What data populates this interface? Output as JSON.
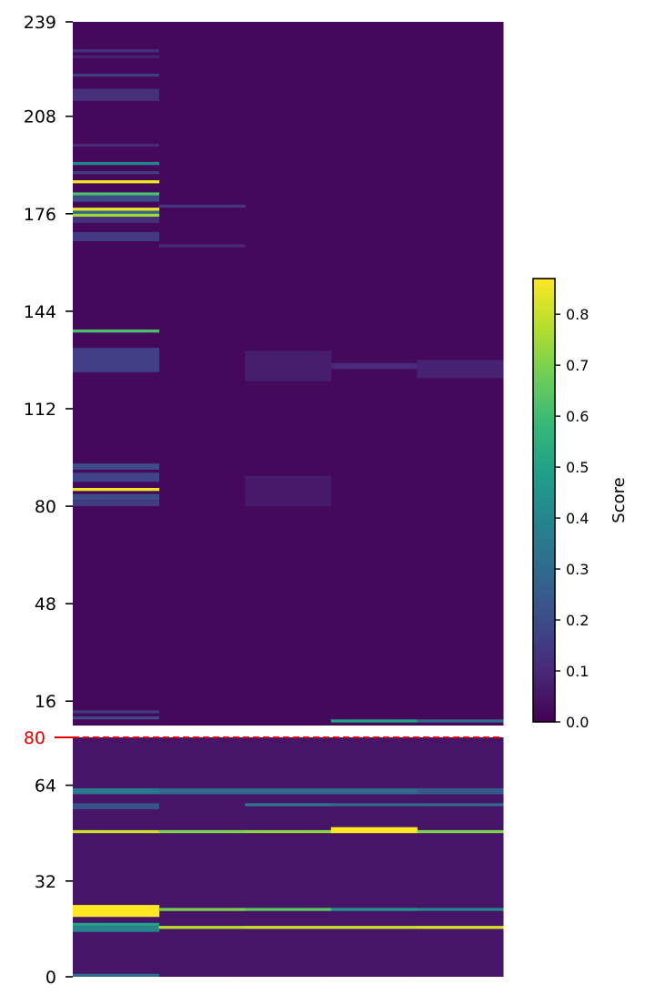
{
  "chart_data": {
    "type": "heatmap",
    "title": "",
    "xlabel": "",
    "ylabel": "",
    "columns": 5,
    "colormap": "viridis",
    "upper_block": {
      "y_tick_labels": [
        "239",
        "208",
        "176",
        "144",
        "112",
        "80",
        "48",
        "16"
      ],
      "y_ticks": [
        239,
        208,
        176,
        144,
        112,
        80,
        48,
        16
      ],
      "y_range": [
        239,
        8
      ],
      "background": 0.02,
      "bands": [
        {
          "col": 0,
          "y0": 230,
          "y1": 229,
          "v": 0.12
        },
        {
          "col": 0,
          "y0": 228,
          "y1": 227,
          "v": 0.08
        },
        {
          "col": 0,
          "y0": 222,
          "y1": 221,
          "v": 0.15
        },
        {
          "col": 0,
          "y0": 217,
          "y1": 213,
          "v": 0.12
        },
        {
          "col": 0,
          "y0": 199,
          "y1": 198,
          "v": 0.1
        },
        {
          "col": 0,
          "y0": 193,
          "y1": 192,
          "v": 0.4
        },
        {
          "col": 0,
          "y0": 190,
          "y1": 189,
          "v": 0.15
        },
        {
          "col": 0,
          "y0": 187,
          "y1": 186,
          "v": 0.85
        },
        {
          "col": 0,
          "y0": 183,
          "y1": 182,
          "v": 0.62
        },
        {
          "col": 0,
          "y0": 182,
          "y1": 180,
          "v": 0.2
        },
        {
          "col": 0,
          "y0": 178,
          "y1": 177,
          "v": 0.85
        },
        {
          "col": 0,
          "y0": 177,
          "y1": 176,
          "v": 0.3
        },
        {
          "col": 0,
          "y0": 176,
          "y1": 175,
          "v": 0.75
        },
        {
          "col": 0,
          "y0": 175,
          "y1": 173,
          "v": 0.12
        },
        {
          "col": 0,
          "y0": 170,
          "y1": 167,
          "v": 0.15
        },
        {
          "col": 0,
          "y0": 138,
          "y1": 137,
          "v": 0.62
        },
        {
          "col": 0,
          "y0": 132,
          "y1": 124,
          "v": 0.16
        },
        {
          "col": 0,
          "y0": 94,
          "y1": 92,
          "v": 0.2
        },
        {
          "col": 0,
          "y0": 91,
          "y1": 88,
          "v": 0.18
        },
        {
          "col": 0,
          "y0": 86,
          "y1": 85,
          "v": 0.85
        },
        {
          "col": 0,
          "y0": 84,
          "y1": 82,
          "v": 0.2
        },
        {
          "col": 0,
          "y0": 82,
          "y1": 80,
          "v": 0.15
        },
        {
          "col": 1,
          "y0": 179,
          "y1": 178,
          "v": 0.14
        },
        {
          "col": 1,
          "y0": 166,
          "y1": 165,
          "v": 0.1
        },
        {
          "col": 2,
          "y0": 131,
          "y1": 121,
          "v": 0.07
        },
        {
          "col": 2,
          "y0": 90,
          "y1": 80,
          "v": 0.06
        },
        {
          "col": 3,
          "y0": 127,
          "y1": 125,
          "v": 0.1
        },
        {
          "col": 4,
          "y0": 128,
          "y1": 122,
          "v": 0.08
        },
        {
          "col": 0,
          "y0": 13,
          "y1": 12,
          "v": 0.15
        },
        {
          "col": 0,
          "y0": 11,
          "y1": 10,
          "v": 0.18
        },
        {
          "col": 3,
          "y0": 10,
          "y1": 9,
          "v": 0.5
        },
        {
          "col": 4,
          "y0": 10,
          "y1": 9,
          "v": 0.3
        }
      ]
    },
    "lower_block": {
      "y_tick_labels": [
        "64",
        "32",
        "0"
      ],
      "y_ticks": [
        64,
        32,
        0
      ],
      "y_range": [
        80,
        0
      ],
      "background": 0.05,
      "bands": [
        {
          "col": 0,
          "y0": 63,
          "y1": 61,
          "v": 0.35
        },
        {
          "col": 0,
          "y0": 58,
          "y1": 56,
          "v": 0.22
        },
        {
          "col": 0,
          "y0": 49,
          "y1": 48,
          "v": 0.8
        },
        {
          "col": 0,
          "y0": 24,
          "y1": 20,
          "v": 0.87
        },
        {
          "col": 0,
          "y0": 18,
          "y1": 17,
          "v": 0.5
        },
        {
          "col": 0,
          "y0": 17,
          "y1": 15,
          "v": 0.4
        },
        {
          "col": 0,
          "y0": 1,
          "y1": 0,
          "v": 0.3
        },
        {
          "col": 1,
          "y0": 63,
          "y1": 61,
          "v": 0.3
        },
        {
          "col": 1,
          "y0": 49,
          "y1": 48,
          "v": 0.7
        },
        {
          "col": 1,
          "y0": 23,
          "y1": 22,
          "v": 0.7
        },
        {
          "col": 1,
          "y0": 17,
          "y1": 16,
          "v": 0.78
        },
        {
          "col": 2,
          "y0": 63,
          "y1": 61,
          "v": 0.3
        },
        {
          "col": 2,
          "y0": 58,
          "y1": 57,
          "v": 0.35
        },
        {
          "col": 2,
          "y0": 49,
          "y1": 48,
          "v": 0.72
        },
        {
          "col": 2,
          "y0": 23,
          "y1": 22,
          "v": 0.65
        },
        {
          "col": 2,
          "y0": 17,
          "y1": 16,
          "v": 0.8
        },
        {
          "col": 3,
          "y0": 63,
          "y1": 61,
          "v": 0.3
        },
        {
          "col": 3,
          "y0": 58,
          "y1": 57,
          "v": 0.3
        },
        {
          "col": 3,
          "y0": 50,
          "y1": 48,
          "v": 0.87
        },
        {
          "col": 3,
          "y0": 23,
          "y1": 22,
          "v": 0.45
        },
        {
          "col": 3,
          "y0": 17,
          "y1": 16,
          "v": 0.8
        },
        {
          "col": 4,
          "y0": 63,
          "y1": 61,
          "v": 0.25
        },
        {
          "col": 4,
          "y0": 58,
          "y1": 57,
          "v": 0.3
        },
        {
          "col": 4,
          "y0": 49,
          "y1": 48,
          "v": 0.7
        },
        {
          "col": 4,
          "y0": 23,
          "y1": 22,
          "v": 0.4
        },
        {
          "col": 4,
          "y0": 17,
          "y1": 16,
          "v": 0.82
        }
      ]
    },
    "reference_line": {
      "label": "80",
      "color": "#e00000",
      "style": "dashed"
    },
    "colorbar": {
      "label": "Score",
      "range": [
        0.0,
        0.87
      ],
      "ticks": [
        0.0,
        0.1,
        0.2,
        0.3,
        0.4,
        0.5,
        0.6,
        0.7,
        0.8
      ],
      "tick_labels": [
        "0.0",
        "0.1",
        "0.2",
        "0.3",
        "0.4",
        "0.5",
        "0.6",
        "0.7",
        "0.8"
      ]
    }
  }
}
